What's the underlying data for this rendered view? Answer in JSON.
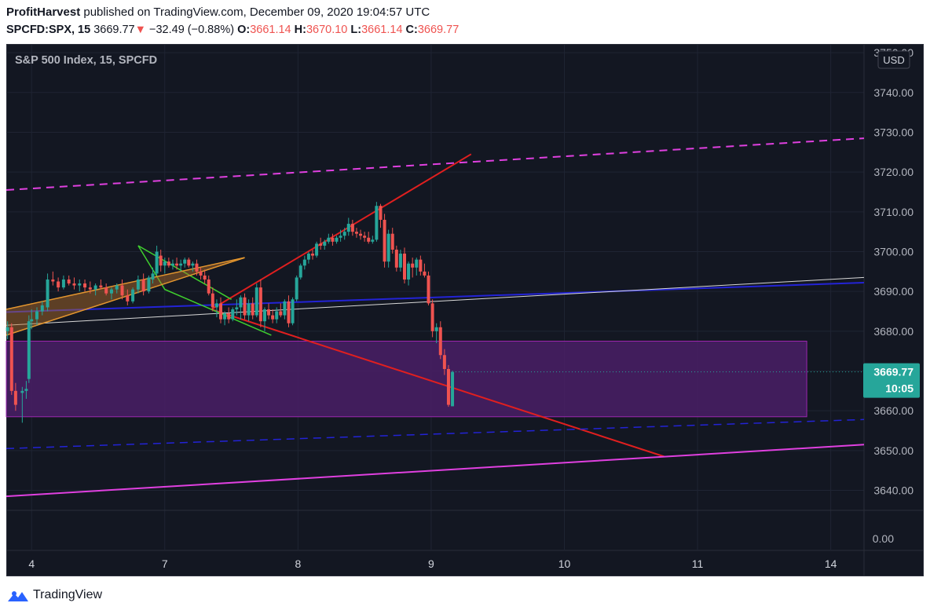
{
  "header": {
    "author": "ProfitHarvest",
    "published_text": "published on TradingView.com, December 09, 2020 19:04:57 UTC",
    "symbol": "SPCFD:SPX, 15",
    "last_price": "3669.77",
    "change_arrow": "▼",
    "change": "−32.49 (−0.88%)",
    "o_label": "O:",
    "o_value": "3661.14",
    "h_label": "H:",
    "h_value": "3670.10",
    "l_label": "L:",
    "l_value": "3661.14",
    "c_label": "C:",
    "c_value": "3669.77"
  },
  "footer": {
    "brand": "TradingView"
  },
  "colors": {
    "background": "#131722",
    "up": "#26a69a",
    "down": "#ef5350",
    "grid": "#1f2433",
    "zone_fill": "#4a1f66",
    "zone_stroke": "#9c27b0",
    "red_line": "#e01f1f",
    "magenta": "#e040e0",
    "blue": "#2323d6",
    "green": "#3fcf2e",
    "orange": "#f0a030",
    "white_line": "#d8d8d8"
  },
  "chart_data": {
    "type": "candlestick",
    "title": "S&P 500 Index, 15, SPCFD",
    "currency_badge": "USD",
    "y_ticks": [
      "3750.00",
      "3740.00",
      "3730.00",
      "3720.00",
      "3710.00",
      "3700.00",
      "3690.00",
      "3680.00",
      "3670.00",
      "3660.00",
      "3650.00",
      "3640.00"
    ],
    "ylim": [
      3633,
      3752
    ],
    "volume_pane_tick": "0.00",
    "x_ticks": [
      {
        "label": "4",
        "t": 0
      },
      {
        "label": "7",
        "t": 1
      },
      {
        "label": "8",
        "t": 2
      },
      {
        "label": "9",
        "t": 3
      },
      {
        "label": "10",
        "t": 4
      },
      {
        "label": "11",
        "t": 5
      },
      {
        "label": "14",
        "t": 6
      }
    ],
    "xlim": [
      -0.19,
      6.25
    ],
    "last_price_label": "3669.77",
    "last_price": 3669.77,
    "countdown_label": "10:05",
    "candles": [
      [
        -0.18,
        3680.0,
        3682.5,
        3678.0,
        3681.0
      ],
      [
        -0.15,
        3681.0,
        3682.0,
        3664.0,
        3665.0
      ],
      [
        -0.12,
        3665.0,
        3667.0,
        3660.0,
        3661.5
      ],
      [
        -0.07,
        3664.5,
        3666.0,
        3657.0,
        3665.0
      ],
      [
        -0.04,
        3665.0,
        3667.5,
        3663.0,
        3665.5
      ],
      [
        -0.02,
        3668.0,
        3684.0,
        3667.0,
        3682.5
      ],
      [
        0.0,
        3682.5,
        3685.5,
        3680.5,
        3683.0
      ],
      [
        0.04,
        3683.0,
        3686.0,
        3681.5,
        3685.0
      ],
      [
        0.08,
        3685.0,
        3687.5,
        3684.0,
        3686.5
      ],
      [
        0.12,
        3686.0,
        3694.5,
        3685.0,
        3693.0
      ],
      [
        0.16,
        3693.0,
        3695.0,
        3691.5,
        3692.5
      ],
      [
        0.2,
        3692.5,
        3693.5,
        3690.0,
        3691.0
      ],
      [
        0.24,
        3691.0,
        3694.0,
        3690.5,
        3693.0
      ],
      [
        0.28,
        3693.0,
        3694.0,
        3691.5,
        3692.0
      ],
      [
        0.32,
        3692.0,
        3693.5,
        3690.5,
        3691.5
      ],
      [
        0.36,
        3691.5,
        3693.0,
        3690.0,
        3692.0
      ],
      [
        0.4,
        3692.0,
        3693.0,
        3690.0,
        3691.0
      ],
      [
        0.44,
        3691.0,
        3692.5,
        3689.5,
        3690.5
      ],
      [
        0.48,
        3690.5,
        3692.0,
        3689.0,
        3691.5
      ],
      [
        0.52,
        3691.5,
        3693.0,
        3690.5,
        3691.0
      ],
      [
        0.56,
        3691.0,
        3692.0,
        3689.0,
        3689.5
      ],
      [
        0.6,
        3689.5,
        3691.0,
        3688.0,
        3690.5
      ],
      [
        0.64,
        3690.5,
        3692.0,
        3689.5,
        3691.5
      ],
      [
        0.68,
        3691.5,
        3693.0,
        3688.0,
        3689.0
      ],
      [
        0.72,
        3689.0,
        3690.5,
        3686.5,
        3687.5
      ],
      [
        0.76,
        3687.5,
        3691.0,
        3687.0,
        3690.5
      ],
      [
        0.8,
        3690.5,
        3694.0,
        3689.5,
        3693.0
      ],
      [
        0.84,
        3693.0,
        3694.5,
        3689.0,
        3690.0
      ],
      [
        0.88,
        3690.0,
        3694.0,
        3689.5,
        3693.5
      ],
      [
        0.91,
        3693.0,
        3696.0,
        3692.0,
        3694.5
      ],
      [
        0.94,
        3694.5,
        3701.5,
        3694.0,
        3700.0
      ],
      [
        0.97,
        3699.0,
        3700.5,
        3695.0,
        3696.5
      ],
      [
        1.0,
        3696.5,
        3698.5,
        3694.5,
        3697.5
      ],
      [
        1.03,
        3697.5,
        3698.5,
        3696.0,
        3696.5
      ],
      [
        1.06,
        3696.5,
        3698.0,
        3695.5,
        3697.0
      ],
      [
        1.09,
        3697.0,
        3698.5,
        3695.5,
        3696.5
      ],
      [
        1.12,
        3696.5,
        3698.0,
        3695.0,
        3697.0
      ],
      [
        1.15,
        3697.0,
        3698.5,
        3696.0,
        3698.0
      ],
      [
        1.18,
        3698.0,
        3698.5,
        3696.0,
        3696.5
      ],
      [
        1.21,
        3696.5,
        3697.5,
        3695.0,
        3697.0
      ],
      [
        1.24,
        3697.0,
        3698.0,
        3694.0,
        3695.0
      ],
      [
        1.27,
        3695.0,
        3696.0,
        3693.0,
        3694.0
      ],
      [
        1.3,
        3694.0,
        3695.5,
        3692.0,
        3693.0
      ],
      [
        1.33,
        3693.0,
        3694.0,
        3689.0,
        3689.5
      ],
      [
        1.36,
        3689.5,
        3691.0,
        3685.0,
        3686.0
      ],
      [
        1.39,
        3686.0,
        3688.0,
        3683.5,
        3687.0
      ],
      [
        1.42,
        3687.0,
        3688.5,
        3682.0,
        3683.0
      ],
      [
        1.45,
        3683.0,
        3685.0,
        3681.5,
        3684.5
      ],
      [
        1.48,
        3684.5,
        3686.0,
        3682.0,
        3683.0
      ],
      [
        1.51,
        3683.0,
        3686.0,
        3682.5,
        3685.5
      ],
      [
        1.54,
        3685.5,
        3688.0,
        3684.0,
        3686.0
      ],
      [
        1.57,
        3686.0,
        3689.0,
        3683.0,
        3688.5
      ],
      [
        1.6,
        3688.5,
        3689.5,
        3683.0,
        3684.0
      ],
      [
        1.63,
        3684.0,
        3688.0,
        3682.5,
        3687.0
      ],
      [
        1.66,
        3687.0,
        3688.5,
        3683.0,
        3684.0
      ],
      [
        1.69,
        3684.0,
        3692.0,
        3683.5,
        3691.0
      ],
      [
        1.72,
        3691.0,
        3693.0,
        3681.0,
        3682.5
      ],
      [
        1.75,
        3682.5,
        3686.0,
        3680.0,
        3685.5
      ],
      [
        1.78,
        3685.5,
        3687.0,
        3683.0,
        3684.0
      ],
      [
        1.81,
        3684.0,
        3685.5,
        3682.0,
        3683.0
      ],
      [
        1.84,
        3683.0,
        3686.0,
        3682.0,
        3685.0
      ],
      [
        1.87,
        3685.0,
        3687.0,
        3683.5,
        3684.0
      ],
      [
        1.9,
        3684.0,
        3688.0,
        3683.0,
        3687.5
      ],
      [
        1.93,
        3687.5,
        3689.0,
        3681.0,
        3682.0
      ],
      [
        1.96,
        3682.0,
        3688.5,
        3681.5,
        3688.0
      ],
      [
        1.99,
        3688.0,
        3694.0,
        3687.5,
        3693.5
      ],
      [
        2.02,
        3693.5,
        3697.0,
        3693.0,
        3696.5
      ],
      [
        2.05,
        3696.5,
        3699.0,
        3695.5,
        3698.0
      ],
      [
        2.08,
        3698.0,
        3700.0,
        3697.0,
        3699.5
      ],
      [
        2.11,
        3699.5,
        3700.5,
        3698.0,
        3699.0
      ],
      [
        2.14,
        3699.0,
        3702.5,
        3698.5,
        3702.0
      ],
      [
        2.17,
        3702.0,
        3703.5,
        3700.5,
        3701.5
      ],
      [
        2.2,
        3701.5,
        3703.0,
        3700.5,
        3702.5
      ],
      [
        2.23,
        3702.5,
        3704.5,
        3702.0,
        3703.5
      ],
      [
        2.26,
        3703.5,
        3704.5,
        3701.5,
        3702.5
      ],
      [
        2.29,
        3702.5,
        3704.0,
        3702.0,
        3703.5
      ],
      [
        2.32,
        3703.5,
        3705.5,
        3702.5,
        3704.0
      ],
      [
        2.35,
        3704.0,
        3706.0,
        3703.0,
        3705.0
      ],
      [
        2.38,
        3705.0,
        3708.5,
        3704.0,
        3707.0
      ],
      [
        2.41,
        3707.0,
        3708.0,
        3704.0,
        3705.0
      ],
      [
        2.44,
        3705.0,
        3706.0,
        3703.5,
        3704.5
      ],
      [
        2.47,
        3704.5,
        3705.5,
        3703.0,
        3704.0
      ],
      [
        2.5,
        3704.0,
        3705.0,
        3702.5,
        3703.5
      ],
      [
        2.53,
        3703.5,
        3705.0,
        3702.0,
        3702.5
      ],
      [
        2.56,
        3702.5,
        3704.0,
        3702.0,
        3703.0
      ],
      [
        2.59,
        3703.0,
        3712.5,
        3702.5,
        3711.5
      ],
      [
        2.62,
        3711.5,
        3712.0,
        3706.0,
        3708.0
      ],
      [
        2.65,
        3708.0,
        3709.5,
        3696.0,
        3697.5
      ],
      [
        2.68,
        3697.5,
        3705.5,
        3696.0,
        3704.5
      ],
      [
        2.71,
        3704.5,
        3706.0,
        3699.5,
        3700.5
      ],
      [
        2.74,
        3700.5,
        3701.5,
        3695.0,
        3696.0
      ],
      [
        2.77,
        3696.0,
        3700.5,
        3695.0,
        3699.5
      ],
      [
        2.8,
        3699.5,
        3701.0,
        3692.0,
        3693.0
      ],
      [
        2.83,
        3693.0,
        3697.5,
        3691.5,
        3697.0
      ],
      [
        2.86,
        3697.0,
        3698.5,
        3693.5,
        3696.0
      ],
      [
        2.89,
        3696.0,
        3698.5,
        3694.0,
        3698.0
      ],
      [
        2.92,
        3698.0,
        3699.0,
        3694.0,
        3695.0
      ],
      [
        2.95,
        3695.0,
        3697.0,
        3693.5,
        3694.0
      ],
      [
        2.98,
        3694.0,
        3695.0,
        3686.5,
        3687.0
      ],
      [
        3.01,
        3687.0,
        3688.0,
        3678.5,
        3680.0
      ],
      [
        3.04,
        3680.0,
        3682.0,
        3677.0,
        3681.0
      ],
      [
        3.07,
        3681.0,
        3682.5,
        3673.0,
        3674.0
      ],
      [
        3.1,
        3674.0,
        3675.5,
        3669.0,
        3670.5
      ],
      [
        3.13,
        3670.5,
        3671.5,
        3661.0,
        3661.5
      ],
      [
        3.16,
        3661.14,
        3670.1,
        3661.14,
        3669.77
      ]
    ],
    "annotations": {
      "purple_zone": {
        "x0": -0.2,
        "x1": 5.82,
        "y0": 3658.5,
        "y1": 3677.5
      },
      "lines": [
        {
          "name": "red-channel-upper",
          "color": "red_line",
          "dash": false,
          "width": 2,
          "points": [
            [
              1.35,
              3685.5
            ],
            [
              3.3,
              3724.5
            ]
          ]
        },
        {
          "name": "red-channel-lower",
          "color": "red_line",
          "dash": false,
          "width": 2,
          "points": [
            [
              1.35,
              3685.5
            ],
            [
              4.75,
              3648.5
            ]
          ]
        },
        {
          "name": "magenta-dashed-resistance",
          "color": "magenta",
          "dash": true,
          "width": 2,
          "points": [
            [
              -0.19,
              3715.5
            ],
            [
              6.25,
              3728.5
            ]
          ]
        },
        {
          "name": "magenta-support",
          "color": "magenta",
          "dash": false,
          "width": 2,
          "points": [
            [
              -0.19,
              3638.5
            ],
            [
              6.25,
              3651.5
            ]
          ]
        },
        {
          "name": "blue-solid-line",
          "color": "blue",
          "dash": false,
          "width": 2,
          "points": [
            [
              -0.19,
              3684.8
            ],
            [
              6.25,
              3692.2
            ]
          ]
        },
        {
          "name": "blue-dashed-line",
          "color": "blue",
          "dash": true,
          "width": 1.5,
          "points": [
            [
              -0.19,
              3650.5
            ],
            [
              6.25,
              3657.8
            ]
          ]
        },
        {
          "name": "white-trend-line",
          "color": "white_line",
          "dash": false,
          "width": 1,
          "points": [
            [
              -0.19,
              3681.5
            ],
            [
              6.25,
              3693.5
            ]
          ]
        },
        {
          "name": "green-triangle-upper",
          "color": "green",
          "dash": false,
          "width": 1.5,
          "points": [
            [
              0.8,
              3701.5
            ],
            [
              1.0,
              3690.5
            ],
            [
              1.8,
              3679.0
            ]
          ]
        },
        {
          "name": "green-triangle-lower",
          "color": "green",
          "dash": false,
          "width": 1.5,
          "points": [
            [
              0.8,
              3701.5
            ],
            [
              1.5,
              3688.0
            ]
          ]
        },
        {
          "name": "orange-wedge-upper",
          "color": "orange",
          "dash": false,
          "width": 1.5,
          "points": [
            [
              -0.19,
              3685.5
            ],
            [
              1.6,
              3698.5
            ]
          ]
        },
        {
          "name": "orange-wedge-lower",
          "color": "orange",
          "dash": false,
          "width": 1.5,
          "points": [
            [
              -0.19,
              3679.0
            ],
            [
              1.6,
              3698.5
            ]
          ]
        }
      ]
    }
  }
}
